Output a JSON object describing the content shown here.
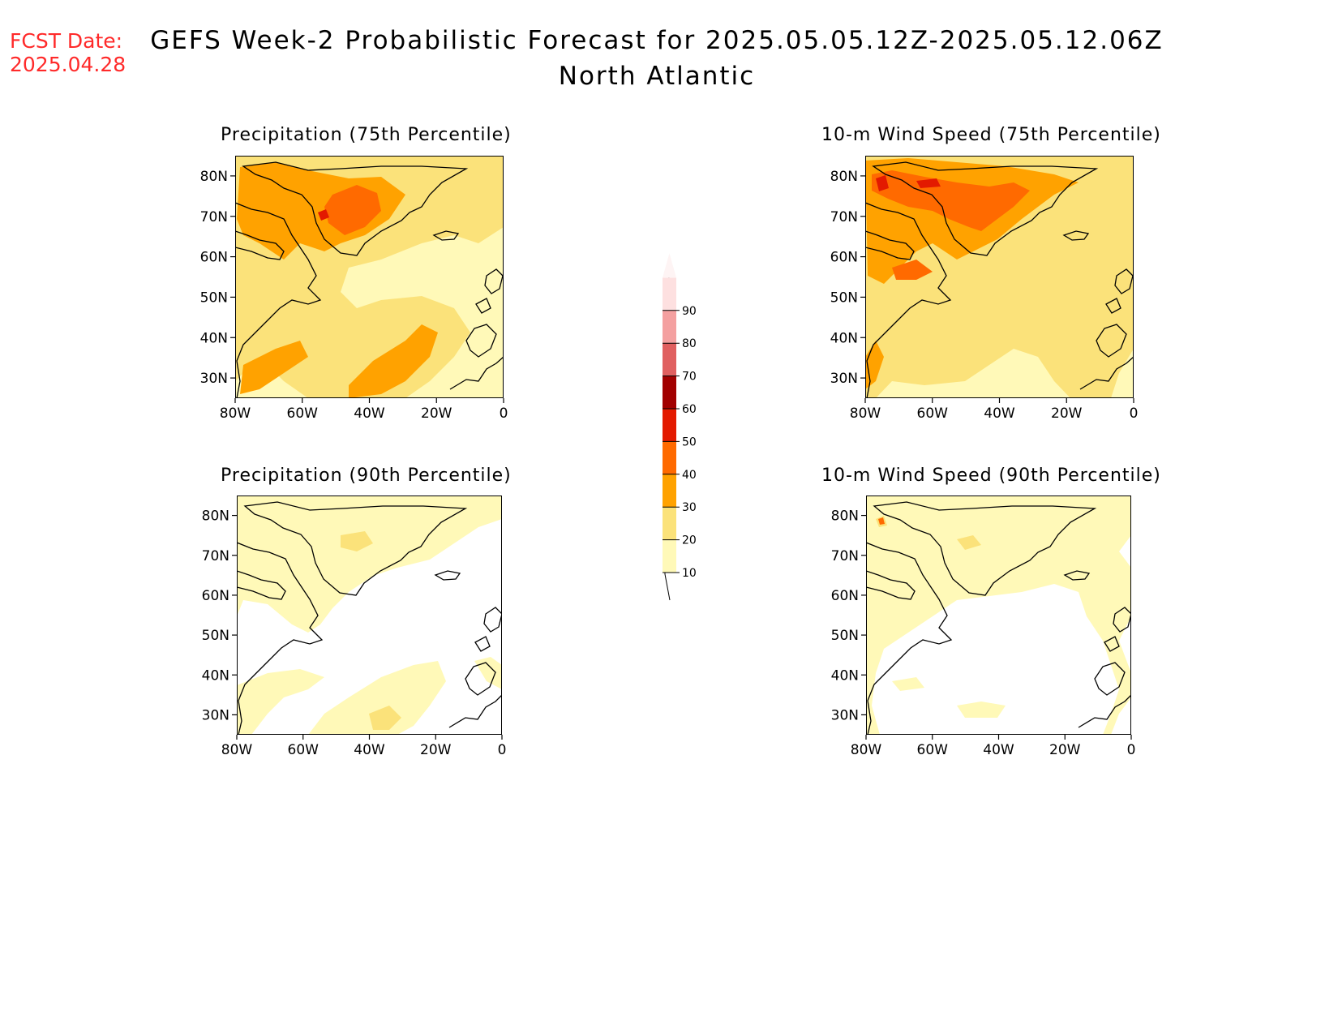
{
  "header": {
    "fcst_label": "FCST Date:",
    "fcst_date": "2025.04.28",
    "title": "GEFS Week-2 Probabilistic Forecast for 2025.05.05.12Z-2025.05.12.06Z",
    "region": "North Atlantic"
  },
  "panels": [
    {
      "title": "Precipitation (75th Percentile)"
    },
    {
      "title": "10-m Wind Speed (75th Percentile)"
    },
    {
      "title": "Precipitation (90th Percentile)"
    },
    {
      "title": "10-m Wind Speed (90th Percentile)"
    }
  ],
  "axes": {
    "lat_ticks": [
      "30N",
      "40N",
      "50N",
      "60N",
      "70N",
      "80N"
    ],
    "lon_ticks": [
      "80W",
      "60W",
      "40W",
      "20W",
      "0"
    ]
  },
  "colorbar": {
    "levels": [
      "10",
      "20",
      "30",
      "40",
      "50",
      "60",
      "70",
      "80",
      "90"
    ],
    "colors": [
      "#fff9b8",
      "#fbe27a",
      "#ffa200",
      "#ff6a00",
      "#e31a00",
      "#a20000",
      "#e06060",
      "#f4a0a0",
      "#fde0e0"
    ]
  }
}
